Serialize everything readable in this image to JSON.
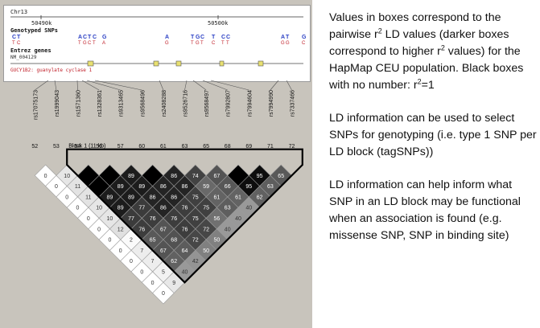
{
  "browser": {
    "chromosome": "Chr13",
    "ruler_ticks": [
      "50490k",
      "50500k"
    ],
    "genotyped_label": "Genotyped SNPs",
    "snp_alleles": [
      {
        "top": "C",
        "bot": "T",
        "color": "#2a3fc4"
      },
      {
        "top": "T",
        "bot": "C",
        "color": "#2a3fc4"
      },
      {
        "top": "A",
        "bot": "T",
        "color": "#2a3fc4"
      },
      {
        "top": "C",
        "bot": "G",
        "color": "#2a3fc4"
      },
      {
        "top": "T",
        "bot": "C",
        "color": "#2a3fc4"
      },
      {
        "top": "C",
        "bot": "T",
        "color": "#2a3fc4"
      },
      {
        "top": "G",
        "bot": "A",
        "color": "#2a3fc4"
      },
      {
        "top": "A",
        "bot": "G",
        "color": "#2a3fc4"
      },
      {
        "top": "T",
        "bot": "T",
        "color": "#2a3fc4"
      },
      {
        "top": "G",
        "bot": "G",
        "color": "#2a3fc4"
      },
      {
        "top": "C",
        "bot": "T",
        "color": "#2a3fc4"
      },
      {
        "top": "T",
        "bot": "C",
        "color": "#2a3fc4"
      },
      {
        "top": "C",
        "bot": "T",
        "color": "#2a3fc4"
      },
      {
        "top": "C",
        "bot": "T",
        "color": "#2a3fc4"
      },
      {
        "top": "A",
        "bot": "G",
        "color": "#2a3fc4"
      },
      {
        "top": "T",
        "bot": "G",
        "color": "#2a3fc4"
      },
      {
        "top": "G",
        "bot": "C",
        "color": "#2a3fc4"
      }
    ],
    "entrez_label": "Entrez genes",
    "accession": "NM_004129",
    "gene_name": "GUCY1B2: guanylate cyclase 1"
  },
  "snps": [
    {
      "id": "rs17075173",
      "pos": "52"
    },
    {
      "id": "rs1999043",
      "pos": "53"
    },
    {
      "id": "rs1571360",
      "pos": "54"
    },
    {
      "id": "rs1328361",
      "pos": "56"
    },
    {
      "id": "rs9313465",
      "pos": "57"
    },
    {
      "id": "rs9568496",
      "pos": "60"
    },
    {
      "id": "rs2408288",
      "pos": "61"
    },
    {
      "id": "rs9526716",
      "pos": "63"
    },
    {
      "id": "rs9568497",
      "pos": "65"
    },
    {
      "id": "rs7992807",
      "pos": "68"
    },
    {
      "id": "rs7994604",
      "pos": "69"
    },
    {
      "id": "rs7994990",
      "pos": "71"
    },
    {
      "id": "rs7337466",
      "pos": "72"
    }
  ],
  "block_label": "Block 1 (11 kb)",
  "ld_cells": [
    {
      "i": 0,
      "j": 1,
      "v": "0",
      "r2": 0
    },
    {
      "i": 1,
      "j": 2,
      "v": "10",
      "r2": 10
    },
    {
      "i": 2,
      "j": 3,
      "v": "",
      "r2": 100
    },
    {
      "i": 3,
      "j": 4,
      "v": "",
      "r2": 100
    },
    {
      "i": 4,
      "j": 5,
      "v": "89",
      "r2": 89
    },
    {
      "i": 5,
      "j": 6,
      "v": "",
      "r2": 100
    },
    {
      "i": 6,
      "j": 7,
      "v": "86",
      "r2": 86
    },
    {
      "i": 7,
      "j": 8,
      "v": "74",
      "r2": 74
    },
    {
      "i": 8,
      "j": 9,
      "v": "67",
      "r2": 67
    },
    {
      "i": 9,
      "j": 10,
      "v": "",
      "r2": 100
    },
    {
      "i": 10,
      "j": 11,
      "v": "95",
      "r2": 95
    },
    {
      "i": 11,
      "j": 12,
      "v": "65",
      "r2": 65
    },
    {
      "i": 0,
      "j": 2,
      "v": "0",
      "r2": 0
    },
    {
      "i": 1,
      "j": 3,
      "v": "11",
      "r2": 11
    },
    {
      "i": 2,
      "j": 4,
      "v": "",
      "r2": 100
    },
    {
      "i": 3,
      "j": 5,
      "v": "89",
      "r2": 89
    },
    {
      "i": 4,
      "j": 6,
      "v": "89",
      "r2": 89
    },
    {
      "i": 5,
      "j": 7,
      "v": "86",
      "r2": 86
    },
    {
      "i": 6,
      "j": 8,
      "v": "86",
      "r2": 86
    },
    {
      "i": 7,
      "j": 9,
      "v": "59",
      "r2": 59
    },
    {
      "i": 8,
      "j": 10,
      "v": "66",
      "r2": 66
    },
    {
      "i": 9,
      "j": 11,
      "v": "95",
      "r2": 95
    },
    {
      "i": 10,
      "j": 12,
      "v": "63",
      "r2": 63
    },
    {
      "i": 0,
      "j": 3,
      "v": "0",
      "r2": 0
    },
    {
      "i": 1,
      "j": 4,
      "v": "11",
      "r2": 11
    },
    {
      "i": 2,
      "j": 5,
      "v": "89",
      "r2": 89
    },
    {
      "i": 3,
      "j": 6,
      "v": "89",
      "r2": 89
    },
    {
      "i": 4,
      "j": 7,
      "v": "86",
      "r2": 86
    },
    {
      "i": 5,
      "j": 8,
      "v": "86",
      "r2": 86
    },
    {
      "i": 6,
      "j": 9,
      "v": "75",
      "r2": 75
    },
    {
      "i": 7,
      "j": 10,
      "v": "61",
      "r2": 61
    },
    {
      "i": 8,
      "j": 11,
      "v": "61",
      "r2": 61
    },
    {
      "i": 9,
      "j": 12,
      "v": "62",
      "r2": 62
    },
    {
      "i": 0,
      "j": 4,
      "v": "0",
      "r2": 0
    },
    {
      "i": 1,
      "j": 5,
      "v": "10",
      "r2": 10
    },
    {
      "i": 2,
      "j": 6,
      "v": "89",
      "r2": 89
    },
    {
      "i": 3,
      "j": 7,
      "v": "77",
      "r2": 77
    },
    {
      "i": 4,
      "j": 8,
      "v": "86",
      "r2": 86
    },
    {
      "i": 5,
      "j": 9,
      "v": "76",
      "r2": 76
    },
    {
      "i": 6,
      "j": 10,
      "v": "75",
      "r2": 75
    },
    {
      "i": 7,
      "j": 11,
      "v": "63",
      "r2": 63
    },
    {
      "i": 8,
      "j": 12,
      "v": "40",
      "r2": 40
    },
    {
      "i": 0,
      "j": 5,
      "v": "0",
      "r2": 0
    },
    {
      "i": 1,
      "j": 6,
      "v": "10",
      "r2": 10
    },
    {
      "i": 2,
      "j": 7,
      "v": "77",
      "r2": 77
    },
    {
      "i": 3,
      "j": 8,
      "v": "76",
      "r2": 76
    },
    {
      "i": 4,
      "j": 9,
      "v": "76",
      "r2": 76
    },
    {
      "i": 5,
      "j": 10,
      "v": "75",
      "r2": 75
    },
    {
      "i": 6,
      "j": 11,
      "v": "56",
      "r2": 56
    },
    {
      "i": 7,
      "j": 12,
      "v": "40",
      "r2": 40
    },
    {
      "i": 0,
      "j": 6,
      "v": "0",
      "r2": 0
    },
    {
      "i": 1,
      "j": 7,
      "v": "12",
      "r2": 12
    },
    {
      "i": 2,
      "j": 8,
      "v": "76",
      "r2": 76
    },
    {
      "i": 3,
      "j": 9,
      "v": "67",
      "r2": 67
    },
    {
      "i": 4,
      "j": 10,
      "v": "76",
      "r2": 76
    },
    {
      "i": 5,
      "j": 11,
      "v": "72",
      "r2": 72
    },
    {
      "i": 6,
      "j": 12,
      "v": "40",
      "r2": 40
    },
    {
      "i": 0,
      "j": 7,
      "v": "0",
      "r2": 0
    },
    {
      "i": 1,
      "j": 8,
      "v": "2",
      "r2": 2
    },
    {
      "i": 2,
      "j": 9,
      "v": "65",
      "r2": 65
    },
    {
      "i": 3,
      "j": 10,
      "v": "68",
      "r2": 68
    },
    {
      "i": 4,
      "j": 11,
      "v": "72",
      "r2": 72
    },
    {
      "i": 5,
      "j": 12,
      "v": "50",
      "r2": 50
    },
    {
      "i": 0,
      "j": 8,
      "v": "0",
      "r2": 0
    },
    {
      "i": 1,
      "j": 9,
      "v": "7",
      "r2": 7
    },
    {
      "i": 2,
      "j": 10,
      "v": "67",
      "r2": 67
    },
    {
      "i": 3,
      "j": 11,
      "v": "64",
      "r2": 64
    },
    {
      "i": 4,
      "j": 12,
      "v": "50",
      "r2": 50
    },
    {
      "i": 0,
      "j": 9,
      "v": "0",
      "r2": 0
    },
    {
      "i": 1,
      "j": 10,
      "v": "7",
      "r2": 7
    },
    {
      "i": 2,
      "j": 11,
      "v": "62",
      "r2": 62
    },
    {
      "i": 3,
      "j": 12,
      "v": "42",
      "r2": 42
    },
    {
      "i": 0,
      "j": 10,
      "v": "0",
      "r2": 0
    },
    {
      "i": 1,
      "j": 11,
      "v": "5",
      "r2": 5
    },
    {
      "i": 2,
      "j": 12,
      "v": "40",
      "r2": 40
    },
    {
      "i": 0,
      "j": 11,
      "v": "0",
      "r2": 0
    },
    {
      "i": 1,
      "j": 12,
      "v": "9",
      "r2": 9
    },
    {
      "i": 0,
      "j": 12,
      "v": "0",
      "r2": 0
    }
  ],
  "notes": {
    "p1_a": "Values in boxes correspond to the pairwise r",
    "p1_sup1": "2",
    "p1_b": " LD values (darker boxes correspond to higher r",
    "p1_sup2": "2",
    "p1_c": " values) for the HapMap CEU population. Black boxes with no number: r",
    "p1_sup3": "2",
    "p1_d": "=1",
    "p2": "LD information can be used to select SNPs for genotyping (i.e. type 1 SNP per LD block (tagSNPs))",
    "p3": "LD information can help inform what SNP in an LD block may be functional when an association is found (e.g. missense SNP, SNP in binding site)"
  }
}
